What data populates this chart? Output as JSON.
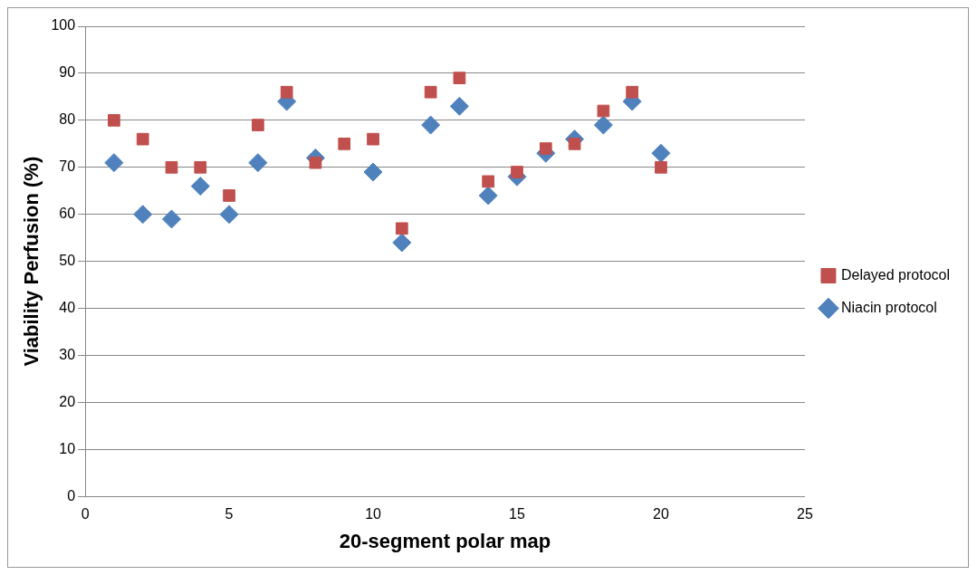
{
  "chart_data": {
    "type": "scatter",
    "xlabel": "20-segment polar map",
    "ylabel": "Viability Perfusion (%)",
    "x": [
      1,
      2,
      3,
      4,
      5,
      6,
      7,
      8,
      9,
      10,
      11,
      12,
      13,
      14,
      15,
      16,
      17,
      18,
      19,
      20
    ],
    "series": [
      {
        "name": "Niacin protocol",
        "color": "#4f81bd",
        "marker": "diamond",
        "values": [
          71,
          60,
          59,
          66,
          60,
          71,
          84,
          72,
          null,
          69,
          54,
          79,
          83,
          64,
          68,
          73,
          76,
          79,
          84,
          73
        ]
      },
      {
        "name": "Delayed protocol",
        "color": "#c0504d",
        "marker": "square",
        "values": [
          80,
          76,
          70,
          70,
          64,
          79,
          86,
          71,
          75,
          76,
          57,
          86,
          89,
          67,
          69,
          74,
          75,
          82,
          86,
          70
        ]
      }
    ],
    "xlim": [
      0,
      25
    ],
    "xticks": [
      0,
      5,
      10,
      15,
      20,
      25
    ],
    "ylim": [
      0,
      100
    ],
    "yticks": [
      0,
      10,
      20,
      30,
      40,
      50,
      60,
      70,
      80,
      90,
      100
    ],
    "grid": "y",
    "legend": "right"
  }
}
